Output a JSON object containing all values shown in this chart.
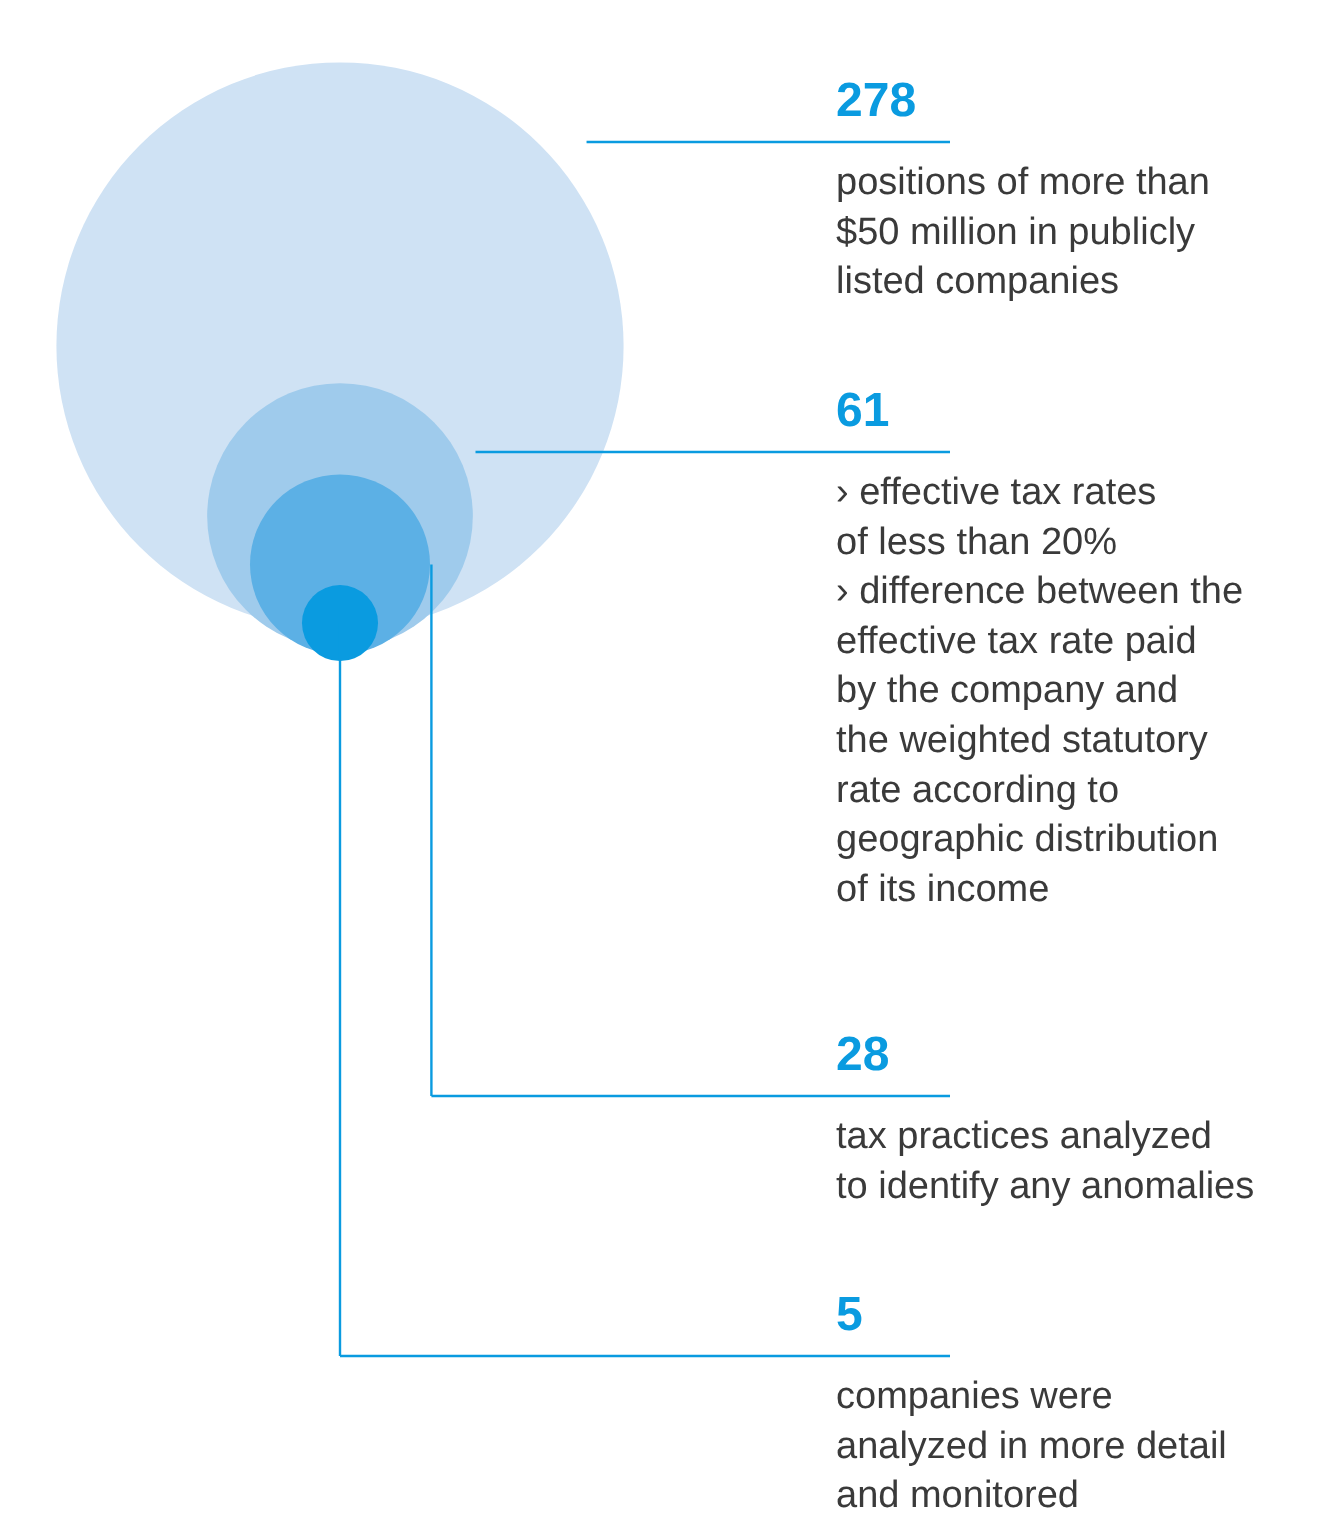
{
  "chart_data": {
    "type": "other",
    "categories": [
      "positions of more than\n$50 million in publicly\nlisted companies",
      "› effective tax rates\nof less than 20%\n› difference between the\neffective tax rate paid\nby the company and\nthe weighted statutory\nrate according to\ngeographic distribution\nof its income",
      "tax practices analyzed\nto identify any anomalies",
      "companies were\nanalyzed in more detail\nand monitored"
    ],
    "values": [
      278,
      61,
      28,
      5
    ],
    "data_labels": true,
    "colors": [
      "#cfe2f4",
      "#9fcbec",
      "#5cb0e5",
      "#0a9be0"
    ]
  }
}
